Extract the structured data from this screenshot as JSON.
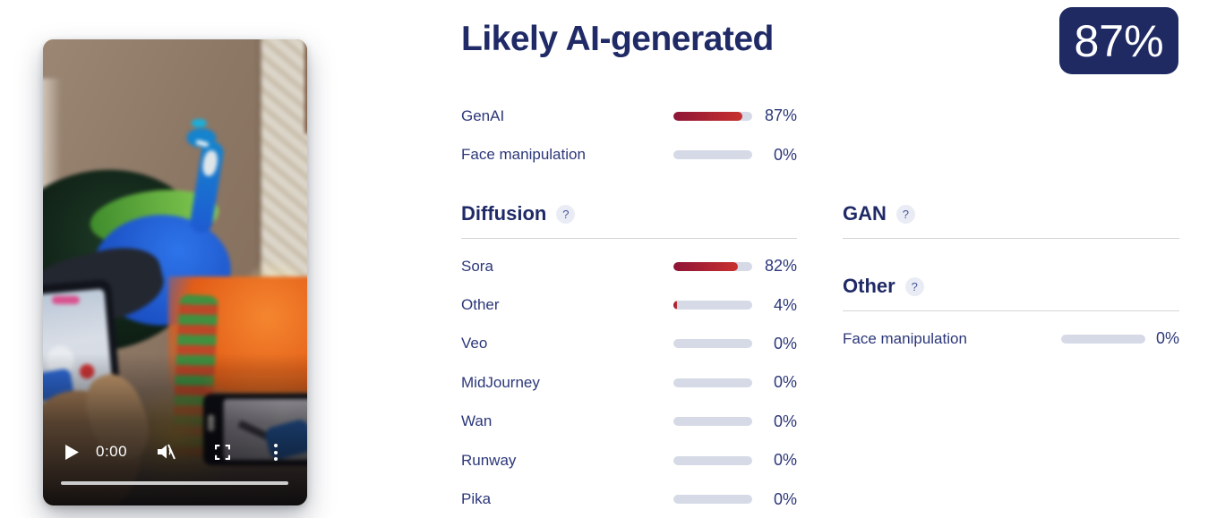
{
  "header": {
    "title": "Likely AI-generated",
    "score_badge": "87%"
  },
  "summary": {
    "rows": [
      {
        "label": "GenAI",
        "value": 87,
        "display": "87%"
      },
      {
        "label": "Face manipulation",
        "value": 0,
        "display": "0%"
      }
    ]
  },
  "sections": {
    "diffusion": {
      "title": "Diffusion",
      "help": "?",
      "rows": [
        {
          "label": "Sora",
          "value": 82,
          "display": "82%"
        },
        {
          "label": "Other",
          "value": 4,
          "display": "4%"
        },
        {
          "label": "Veo",
          "value": 0,
          "display": "0%"
        },
        {
          "label": "MidJourney",
          "value": 0,
          "display": "0%"
        },
        {
          "label": "Wan",
          "value": 0,
          "display": "0%"
        },
        {
          "label": "Runway",
          "value": 0,
          "display": "0%"
        },
        {
          "label": "Pika",
          "value": 0,
          "display": "0%"
        }
      ]
    },
    "gan": {
      "title": "GAN",
      "help": "?",
      "rows": []
    },
    "other": {
      "title": "Other",
      "help": "?",
      "rows": [
        {
          "label": "Face manipulation",
          "value": 0,
          "display": "0%"
        }
      ]
    }
  },
  "video_player": {
    "current_time": "0:00",
    "icons": {
      "play": "play-icon",
      "mute": "muted-volume-icon",
      "fullscreen": "fullscreen-icon",
      "menu": "kebab-menu-icon"
    }
  },
  "colors": {
    "navy_heading": "#1f2a66",
    "navy_label": "#2c3779",
    "badge_bg": "#1f2a63",
    "bar_track": "#d5dae6",
    "bar_fill_start": "#8e1537",
    "bar_fill_end": "#c8302e",
    "divider": "#d6d6d6"
  }
}
